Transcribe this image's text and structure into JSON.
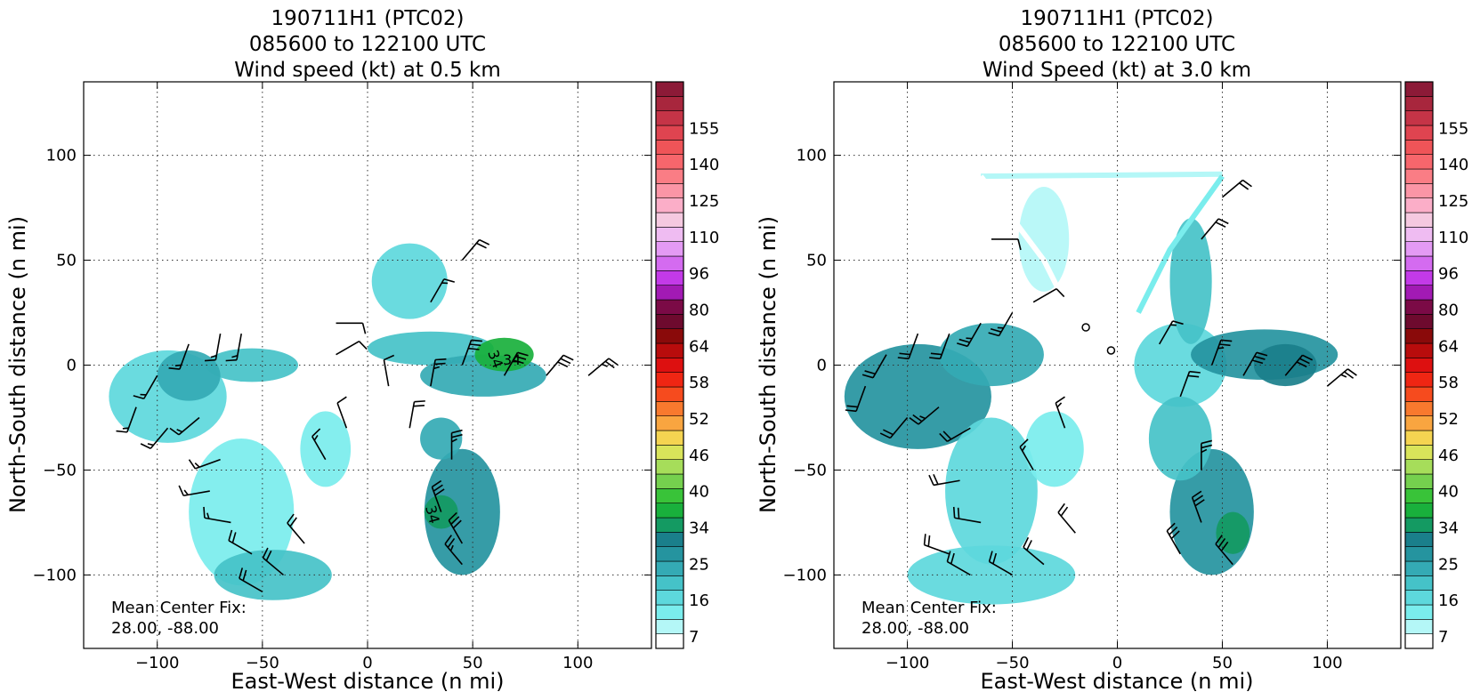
{
  "panels": [
    {
      "title_lines": [
        "190711H1 (PTC02)",
        "085600 to 122100 UTC",
        "Wind speed (kt) at 0.5 km"
      ],
      "xlabel": "East-West distance (n mi)",
      "ylabel": "North-South distance (n mi)",
      "annotation_lines": [
        "Mean Center Fix:",
        "28.00, -88.00"
      ]
    },
    {
      "title_lines": [
        "190711H1 (PTC02)",
        "085600 to 122100 UTC",
        "Wind Speed (kt) at 3.0 km"
      ],
      "xlabel": "East-West distance (n mi)",
      "ylabel": "North-South distance (n mi)",
      "annotation_lines": [
        "Mean Center Fix:",
        "28.00, -88.00"
      ]
    }
  ],
  "axes": {
    "xlim": [
      -135,
      135
    ],
    "ylim": [
      -135,
      135
    ],
    "xticks": [
      -100,
      -50,
      0,
      50,
      100
    ],
    "yticks": [
      -100,
      -50,
      0,
      50,
      100
    ],
    "xtick_labels": [
      "−100",
      "−50",
      "0",
      "50",
      "100"
    ],
    "ytick_labels": [
      "−100",
      "−50",
      "0",
      "50",
      "100"
    ],
    "grid": true
  },
  "colorbar": {
    "colors": [
      "#ffffff",
      "#b4f7f7",
      "#7aeded",
      "#5dd8dc",
      "#45c2c8",
      "#34aab4",
      "#25949f",
      "#1a7f8b",
      "#149a62",
      "#19b03c",
      "#39c339",
      "#75d04e",
      "#a6dd5a",
      "#d9e45a",
      "#f5d451",
      "#f9a540",
      "#f8792e",
      "#f64b1e",
      "#ef2613",
      "#dd1010",
      "#b80c0c",
      "#8a0a0a",
      "#6e0a2e",
      "#7b0a46",
      "#a21ab4",
      "#c33ae8",
      "#d46bf0",
      "#e49af4",
      "#efbcf2",
      "#f5c9e0",
      "#fbaec8",
      "#fb95a6",
      "#fa7d85",
      "#f7666c",
      "#ef5458",
      "#df4450",
      "#c53447",
      "#a8263d",
      "#8c1a37"
    ],
    "tick_labels": [
      "7",
      "16",
      "25",
      "34",
      "40",
      "46",
      "52",
      "58",
      "64",
      "80",
      "96",
      "110",
      "125",
      "140",
      "155"
    ]
  },
  "chart_data": [
    {
      "type": "heatmap",
      "title": "190711H1 (PTC02) 085600 to 122100 UTC Wind speed (kt) at 0.5 km",
      "xlabel": "East-West distance (n mi)",
      "ylabel": "North-South distance (n mi)",
      "xlim": [
        -135,
        135
      ],
      "ylim": [
        -135,
        135
      ],
      "grid": true,
      "colorbar_ticks": [
        7,
        16,
        25,
        34,
        40,
        46,
        52,
        58,
        64,
        80,
        96,
        110,
        125,
        140,
        155
      ],
      "contour_labels": [
        "34"
      ],
      "regions": [
        {
          "x": -95,
          "y": -15,
          "rx": 28,
          "ry": 22,
          "kt": 18
        },
        {
          "x": -55,
          "y": 0,
          "rx": 22,
          "ry": 8,
          "kt": 21
        },
        {
          "x": -85,
          "y": -5,
          "rx": 15,
          "ry": 12,
          "kt": 22
        },
        {
          "x": -60,
          "y": -70,
          "rx": 25,
          "ry": 35,
          "kt": 15
        },
        {
          "x": -45,
          "y": -100,
          "rx": 28,
          "ry": 12,
          "kt": 20
        },
        {
          "x": -20,
          "y": -40,
          "rx": 12,
          "ry": 18,
          "kt": 14
        },
        {
          "x": 30,
          "y": 8,
          "rx": 30,
          "ry": 8,
          "kt": 20
        },
        {
          "x": 55,
          "y": -5,
          "rx": 30,
          "ry": 10,
          "kt": 24
        },
        {
          "x": 65,
          "y": 5,
          "rx": 14,
          "ry": 8,
          "kt": 35
        },
        {
          "x": 45,
          "y": -70,
          "rx": 18,
          "ry": 30,
          "kt": 26
        },
        {
          "x": 35,
          "y": -70,
          "rx": 8,
          "ry": 8,
          "kt": 32
        },
        {
          "x": 35,
          "y": -35,
          "rx": 10,
          "ry": 10,
          "kt": 22
        },
        {
          "x": 20,
          "y": 40,
          "rx": 18,
          "ry": 18,
          "kt": 18
        }
      ],
      "barbs": [
        {
          "x": -110,
          "y": -20,
          "spd": 15,
          "dir": 200
        },
        {
          "x": -100,
          "y": -5,
          "spd": 15,
          "dir": 210
        },
        {
          "x": -85,
          "y": 10,
          "spd": 15,
          "dir": 200
        },
        {
          "x": -70,
          "y": 15,
          "spd": 15,
          "dir": 190
        },
        {
          "x": -60,
          "y": 15,
          "spd": 15,
          "dir": 190
        },
        {
          "x": -95,
          "y": -30,
          "spd": 15,
          "dir": 220
        },
        {
          "x": -80,
          "y": -25,
          "spd": 15,
          "dir": 230
        },
        {
          "x": -70,
          "y": -45,
          "spd": 15,
          "dir": 250
        },
        {
          "x": -75,
          "y": -60,
          "spd": 15,
          "dir": 260
        },
        {
          "x": -65,
          "y": -75,
          "spd": 15,
          "dir": 280
        },
        {
          "x": -55,
          "y": -90,
          "spd": 20,
          "dir": 300
        },
        {
          "x": -40,
          "y": -100,
          "spd": 20,
          "dir": 310
        },
        {
          "x": -30,
          "y": -85,
          "spd": 20,
          "dir": 320
        },
        {
          "x": -50,
          "y": -108,
          "spd": 20,
          "dir": 300
        },
        {
          "x": -20,
          "y": -45,
          "spd": 15,
          "dir": 330
        },
        {
          "x": -10,
          "y": -30,
          "spd": 10,
          "dir": 340
        },
        {
          "x": 10,
          "y": -10,
          "spd": 10,
          "dir": 350
        },
        {
          "x": 20,
          "y": -30,
          "spd": 20,
          "dir": 10
        },
        {
          "x": 30,
          "y": -10,
          "spd": 25,
          "dir": 10
        },
        {
          "x": 45,
          "y": 0,
          "spd": 30,
          "dir": 20
        },
        {
          "x": 65,
          "y": -5,
          "spd": 30,
          "dir": 30
        },
        {
          "x": 85,
          "y": -5,
          "spd": 30,
          "dir": 40
        },
        {
          "x": 105,
          "y": -5,
          "spd": 25,
          "dir": 50
        },
        {
          "x": 40,
          "y": -45,
          "spd": 25,
          "dir": 0
        },
        {
          "x": 35,
          "y": -70,
          "spd": 30,
          "dir": 340
        },
        {
          "x": 45,
          "y": -85,
          "spd": 30,
          "dir": 330
        },
        {
          "x": 45,
          "y": -95,
          "spd": 25,
          "dir": 320
        },
        {
          "x": 30,
          "y": 30,
          "spd": 15,
          "dir": 30
        },
        {
          "x": 45,
          "y": 50,
          "spd": 20,
          "dir": 40
        },
        {
          "x": -15,
          "y": 20,
          "spd": 10,
          "dir": 90
        },
        {
          "x": -15,
          "y": 5,
          "spd": 10,
          "dir": 60
        }
      ]
    },
    {
      "type": "heatmap",
      "title": "190711H1 (PTC02) 085600 to 122100 UTC Wind Speed (kt) at 3.0 km",
      "xlabel": "East-West distance (n mi)",
      "ylabel": "North-South distance (n mi)",
      "xlim": [
        -135,
        135
      ],
      "ylim": [
        -135,
        135
      ],
      "grid": true,
      "colorbar_ticks": [
        7,
        16,
        25,
        34,
        40,
        46,
        52,
        58,
        64,
        80,
        96,
        110,
        125,
        140,
        155
      ],
      "regions": [
        {
          "x": -95,
          "y": -15,
          "rx": 35,
          "ry": 25,
          "kt": 25
        },
        {
          "x": -60,
          "y": 5,
          "rx": 25,
          "ry": 15,
          "kt": 24
        },
        {
          "x": -60,
          "y": -60,
          "rx": 22,
          "ry": 35,
          "kt": 18
        },
        {
          "x": -60,
          "y": -100,
          "rx": 40,
          "ry": 14,
          "kt": 16
        },
        {
          "x": -30,
          "y": -40,
          "rx": 14,
          "ry": 18,
          "kt": 14
        },
        {
          "x": 30,
          "y": 0,
          "rx": 22,
          "ry": 20,
          "kt": 16
        },
        {
          "x": 70,
          "y": 5,
          "rx": 35,
          "ry": 12,
          "kt": 25
        },
        {
          "x": 80,
          "y": 0,
          "rx": 15,
          "ry": 10,
          "kt": 30
        },
        {
          "x": 45,
          "y": -70,
          "rx": 20,
          "ry": 30,
          "kt": 25
        },
        {
          "x": 55,
          "y": -80,
          "rx": 8,
          "ry": 10,
          "kt": 33
        },
        {
          "x": 30,
          "y": -35,
          "rx": 15,
          "ry": 20,
          "kt": 20
        },
        {
          "x": 35,
          "y": 40,
          "rx": 10,
          "ry": 30,
          "kt": 20
        },
        {
          "x": -35,
          "y": 60,
          "rx": 12,
          "ry": 25,
          "kt": 10
        }
      ],
      "lines": [
        {
          "points": [
            [
              -65,
              90
            ],
            [
              50,
              91
            ]
          ],
          "kt": 12
        },
        {
          "points": [
            [
              -65,
              90
            ],
            [
              -35,
              50
            ],
            [
              -20,
              20
            ]
          ],
          "kt": 8
        },
        {
          "points": [
            [
              50,
              90
            ],
            [
              25,
              55
            ],
            [
              10,
              25
            ]
          ],
          "kt": 14
        }
      ],
      "barbs": [
        {
          "x": -120,
          "y": -10,
          "spd": 20,
          "dir": 200
        },
        {
          "x": -110,
          "y": 5,
          "spd": 20,
          "dir": 210
        },
        {
          "x": -95,
          "y": 15,
          "spd": 20,
          "dir": 200
        },
        {
          "x": -80,
          "y": 15,
          "spd": 20,
          "dir": 200
        },
        {
          "x": -65,
          "y": 20,
          "spd": 25,
          "dir": 210
        },
        {
          "x": -50,
          "y": 25,
          "spd": 25,
          "dir": 210
        },
        {
          "x": -100,
          "y": -25,
          "spd": 20,
          "dir": 220
        },
        {
          "x": -85,
          "y": -20,
          "spd": 25,
          "dir": 230
        },
        {
          "x": -70,
          "y": -30,
          "spd": 20,
          "dir": 240
        },
        {
          "x": -75,
          "y": -55,
          "spd": 20,
          "dir": 260
        },
        {
          "x": -65,
          "y": -75,
          "spd": 20,
          "dir": 280
        },
        {
          "x": -80,
          "y": -90,
          "spd": 20,
          "dir": 290
        },
        {
          "x": -70,
          "y": -100,
          "spd": 20,
          "dir": 300
        },
        {
          "x": -50,
          "y": -100,
          "spd": 20,
          "dir": 300
        },
        {
          "x": -35,
          "y": -95,
          "spd": 20,
          "dir": 310
        },
        {
          "x": -20,
          "y": -80,
          "spd": 20,
          "dir": 320
        },
        {
          "x": -40,
          "y": -50,
          "spd": 15,
          "dir": 330
        },
        {
          "x": -25,
          "y": -30,
          "spd": 15,
          "dir": 340
        },
        {
          "x": -60,
          "y": 60,
          "spd": 10,
          "dir": 90
        },
        {
          "x": -40,
          "y": 30,
          "spd": 10,
          "dir": 60
        },
        {
          "x": 20,
          "y": 10,
          "spd": 15,
          "dir": 30
        },
        {
          "x": 30,
          "y": -15,
          "spd": 20,
          "dir": 20
        },
        {
          "x": 45,
          "y": 0,
          "spd": 25,
          "dir": 20
        },
        {
          "x": 60,
          "y": -5,
          "spd": 30,
          "dir": 30
        },
        {
          "x": 80,
          "y": -5,
          "spd": 30,
          "dir": 40
        },
        {
          "x": 100,
          "y": -10,
          "spd": 25,
          "dir": 50
        },
        {
          "x": 40,
          "y": -50,
          "spd": 25,
          "dir": 0
        },
        {
          "x": 40,
          "y": -75,
          "spd": 30,
          "dir": 340
        },
        {
          "x": 30,
          "y": -90,
          "spd": 30,
          "dir": 330
        },
        {
          "x": 55,
          "y": -95,
          "spd": 30,
          "dir": 320
        },
        {
          "x": 40,
          "y": 60,
          "spd": 20,
          "dir": 40
        },
        {
          "x": 50,
          "y": 80,
          "spd": 20,
          "dir": 50
        }
      ],
      "calm_points": [
        {
          "x": -15,
          "y": 18
        },
        {
          "x": -3,
          "y": 7
        }
      ]
    }
  ]
}
